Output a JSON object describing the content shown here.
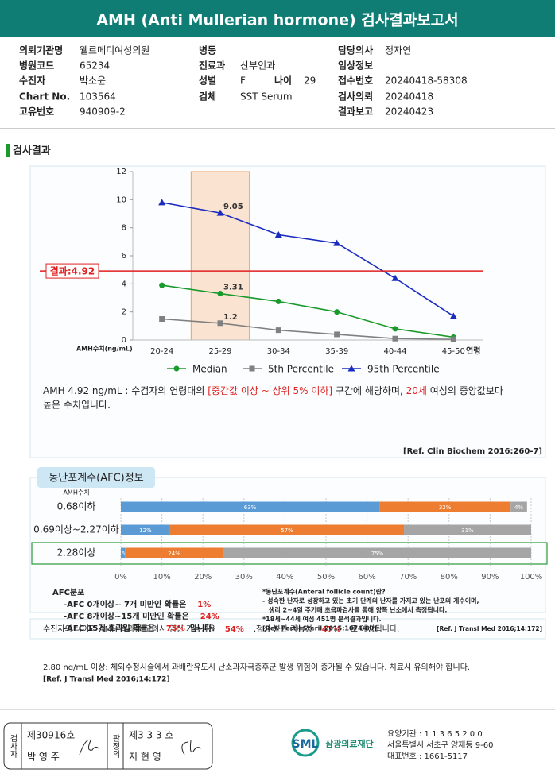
{
  "header": {
    "title": "AMH (Anti Mullerian hormone) 검사결과보고서"
  },
  "info": [
    {
      "label": "의뢰기관명",
      "value": "웰르메디여성의원"
    },
    {
      "label": "병원코드",
      "value": "65234"
    },
    {
      "label": "수진자",
      "value": "박소윤"
    },
    {
      "label": "Chart No.",
      "value": "103564"
    },
    {
      "label": "고유번호",
      "value": "940909-2"
    },
    {
      "label": "병동"
    },
    {
      "label": "진료과",
      "value": "산부인과"
    },
    {
      "label": "성별",
      "value": "F"
    },
    {
      "label": "검체",
      "value": "SST Serum"
    },
    {
      "label": "나이",
      "value": "29"
    },
    {
      "label": "담당의사",
      "value": "정자연"
    },
    {
      "label": "임상정보"
    },
    {
      "label": "접수번호",
      "value": "20240418-58308"
    },
    {
      "label": "검사의뢰",
      "value": "20240418"
    },
    {
      "label": "결과보고",
      "value": "20240423"
    }
  ],
  "section_title": "검사결과",
  "chart_data": [
    {
      "type": "line",
      "categories": [
        "20-24",
        "25-29",
        "30-34",
        "35-39",
        "40-44",
        "45-50"
      ],
      "series": [
        {
          "name": "Median",
          "color": "#1a9a2a",
          "marker": "circle",
          "values": [
            3.9,
            3.31,
            2.75,
            2.0,
            0.8,
            0.2
          ]
        },
        {
          "name": "5th Percentile",
          "color": "#808080",
          "marker": "square",
          "values": [
            1.5,
            1.2,
            0.7,
            0.4,
            0.1,
            0.05
          ]
        },
        {
          "name": "95th Percentile",
          "color": "#1a2bc0",
          "marker": "triangle",
          "values": [
            9.8,
            9.05,
            7.5,
            6.9,
            4.4,
            1.7
          ]
        }
      ],
      "ylim": [
        0,
        12
      ],
      "yticks": [
        0,
        2,
        4,
        6,
        8,
        10,
        12
      ],
      "y_label": "AMH수치(ng/mL)",
      "x_label": "연령",
      "highlight_index": 1,
      "data_label_index": 1,
      "result": {
        "value": 4.92,
        "label": "결과:4.92",
        "color": "#e02020"
      }
    },
    {
      "type": "stacked_barh",
      "y_header": "AMH수치",
      "categories": [
        "0.68이하",
        "0.69이상~2.27이하",
        "2.28이상"
      ],
      "series": [
        {
          "color": "#5b9bd5",
          "values": [
            63,
            12,
            1
          ],
          "value_labels": [
            "63%",
            "12%",
            "1%"
          ]
        },
        {
          "color": "#ed7d31",
          "values": [
            32,
            57,
            24
          ],
          "value_labels": [
            "32%",
            "57%",
            "24%"
          ]
        },
        {
          "color": "#a5a5a5",
          "values": [
            4,
            31,
            75
          ],
          "value_labels": [
            "4%",
            "31%",
            "75%"
          ]
        }
      ],
      "xlim": [
        0,
        100
      ],
      "xticks": [
        {
          "value": 0,
          "label": "0%"
        },
        {
          "value": 10,
          "label": "10%"
        },
        {
          "value": 20,
          "label": "20%"
        },
        {
          "value": 30,
          "label": "30%"
        },
        {
          "value": 40,
          "label": "40%"
        },
        {
          "value": 50,
          "label": "50%"
        },
        {
          "value": 60,
          "label": "60%"
        },
        {
          "value": 70,
          "label": "70%"
        },
        {
          "value": 80,
          "label": "80%"
        },
        {
          "value": 90,
          "label": "90%"
        },
        {
          "value": 100,
          "label": "100%"
        }
      ],
      "highlight_index": 2
    }
  ],
  "interpretation": [
    "AMH  4.92 ng/mL : 수검자의 연령대의 ",
    "[중간값 이상 ~ 상위 5% 이하]",
    " 구간에 해당하며, ",
    "20세",
    " 여성의 중앙값보다",
    "높은 수치입니다."
  ],
  "interpretation_ref": "[Ref. Clin Biochem 2016:260-7]",
  "afc_title": "동난포계수(AFC)정보",
  "afc_dist": {
    "title": "AFC분포",
    "lines": [
      {
        "text": "-AFC  0개이상~ 7개 미만인 확률은",
        "prob": "1%"
      },
      {
        "text": "-AFC  8개이상~15개 미만인 확률은",
        "prob": "24%"
      },
      {
        "text": "-AFC  15개 초과일 확률은",
        "prob": "75%",
        "suffix": "입니다."
      }
    ]
  },
  "afc_notes": [
    "*동난포계수(Anteral follicle count)란?",
    "- 성숙한 난자로 성장하고 있는 초기 단계의 난자를 가지고 있는 난포의 계수이며,",
    "생리 2~4일 주기때 초음파검사를 통해 양쪽 난소에서 측정됩니다.",
    "*18세~44세 여성 451명 분석결과입니다.",
    "[Ref. Fertil Steril 2015:1074-80]"
  ],
  "probability": [
    "수진자의 나이와 AMH 결과를 고려시 임신 가능성은",
    "54%",
    ",정상 분만 가능성",
    "47%",
    "로 예상됩니다.",
    "[Ref. J Transl Med 2016;14:172]"
  ],
  "warning": "2.80  ng/mL  이상: 체외수정시술에서 과배란유도시 난소과자극증후군 발생 위험이 증가될 수 있습니다. 치료시 유의해야 합니다.",
  "warning_ref": "[Ref. J Transl Med 2016;14:172]",
  "footer": {
    "tester_label": "검사자",
    "tester_no": "제30916호",
    "tester_name": "박 영 주",
    "judge_label": "판정의",
    "judge_no": "제3 3 3 호",
    "judge_name": "지 현 영",
    "logo": "SML",
    "org": "삼광의료재단",
    "lines": [
      "요양기관 : 1 1 3 6 5 2 0 0",
      "서울특별시 서초구 양재동 9-60",
      "대표번호 : 1661-5117"
    ]
  }
}
